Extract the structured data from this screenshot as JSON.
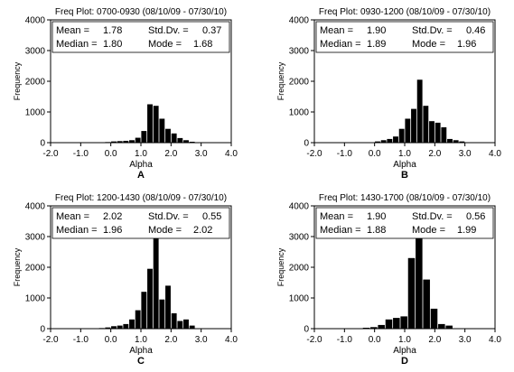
{
  "chart_data": [
    {
      "type": "bar",
      "title": "Freq Plot: 0700-0930 (08/10/09 - 07/30/10)",
      "xlabel": "Alpha",
      "ylabel": "Frequency",
      "letter": "A",
      "xlim": [
        -2.0,
        4.0
      ],
      "ylim": [
        0,
        4000
      ],
      "xticks": [
        "-2.0",
        "-1.0",
        "0.0",
        "1.0",
        "2.0",
        "3.0",
        "4.0"
      ],
      "yticks": [
        "0",
        "1000",
        "2000",
        "3000",
        "4000"
      ],
      "bin_start": -0.2,
      "bin_width": 0.2,
      "values": [
        20,
        40,
        50,
        60,
        80,
        160,
        380,
        1250,
        1200,
        780,
        450,
        300,
        150,
        80,
        30
      ],
      "stats": {
        "mean_label": "Mean =",
        "mean": "1.78",
        "sd_label": "Std.Dv. =",
        "sd": "0.37",
        "median_label": "Median =",
        "median": "1.80",
        "mode_label": "Mode =",
        "mode": "1.68"
      }
    },
    {
      "type": "bar",
      "title": "Freq Plot: 0930-1200 (08/10/09 - 07/30/10)",
      "xlabel": "Alpha",
      "ylabel": "Frequency",
      "letter": "B",
      "xlim": [
        -2.0,
        4.0
      ],
      "ylim": [
        0,
        4000
      ],
      "xticks": [
        "-2.0",
        "-1.0",
        "0.0",
        "1.0",
        "2.0",
        "3.0",
        "4.0"
      ],
      "yticks": [
        "0",
        "1000",
        "2000",
        "3000",
        "4000"
      ],
      "bin_start": 0.0,
      "bin_width": 0.2,
      "values": [
        40,
        80,
        120,
        200,
        450,
        780,
        1100,
        2050,
        1200,
        700,
        650,
        500,
        120,
        80,
        40
      ],
      "stats": {
        "mean_label": "Mean =",
        "mean": "1.90",
        "sd_label": "Std.Dv. =",
        "sd": "0.46",
        "median_label": "Median =",
        "median": "1.89",
        "mode_label": "Mode =",
        "mode": "1.96"
      }
    },
    {
      "type": "bar",
      "title": "Freq Plot: 1200-1430 (08/10/09 - 07/30/10)",
      "xlabel": "Alpha",
      "ylabel": "Frequency",
      "letter": "C",
      "xlim": [
        -2.0,
        4.0
      ],
      "ylim": [
        0,
        4000
      ],
      "xticks": [
        "-2.0",
        "-1.0",
        "0.0",
        "1.0",
        "2.0",
        "3.0",
        "4.0"
      ],
      "yticks": [
        "0",
        "1000",
        "2000",
        "3000",
        "4000"
      ],
      "bin_start": -0.4,
      "bin_width": 0.2,
      "values": [
        20,
        40,
        80,
        100,
        150,
        300,
        600,
        1200,
        1950,
        2950,
        950,
        1400,
        500,
        250,
        300,
        100
      ],
      "stats": {
        "mean_label": "Mean =",
        "mean": "2.02",
        "sd_label": "Std.Dv. =",
        "sd": "0.55",
        "median_label": "Median =",
        "median": "1.96",
        "mode_label": "Mode =",
        "mode": "2.02"
      }
    },
    {
      "type": "bar",
      "title": "Freq Plot: 1430-1700 (08/10/09 - 07/30/10)",
      "xlabel": "Alpha",
      "ylabel": "Frequency",
      "letter": "D",
      "xlim": [
        -2.0,
        4.0
      ],
      "ylim": [
        0,
        4000
      ],
      "xticks": [
        "-2.0",
        "-1.0",
        "0.0",
        "1.0",
        "2.0",
        "3.0",
        "4.0"
      ],
      "yticks": [
        "0",
        "1000",
        "2000",
        "3000",
        "4000"
      ],
      "bin_start": -0.4,
      "bin_width": 0.25,
      "values": [
        30,
        50,
        120,
        300,
        350,
        400,
        2300,
        3150,
        1600,
        650,
        150,
        100
      ],
      "stats": {
        "mean_label": "Mean =",
        "mean": "1.90",
        "sd_label": "Std.Dv. =",
        "sd": "0.56",
        "median_label": "Median =",
        "median": "1.88",
        "mode_label": "Mode =",
        "mode": "1.99"
      }
    }
  ]
}
